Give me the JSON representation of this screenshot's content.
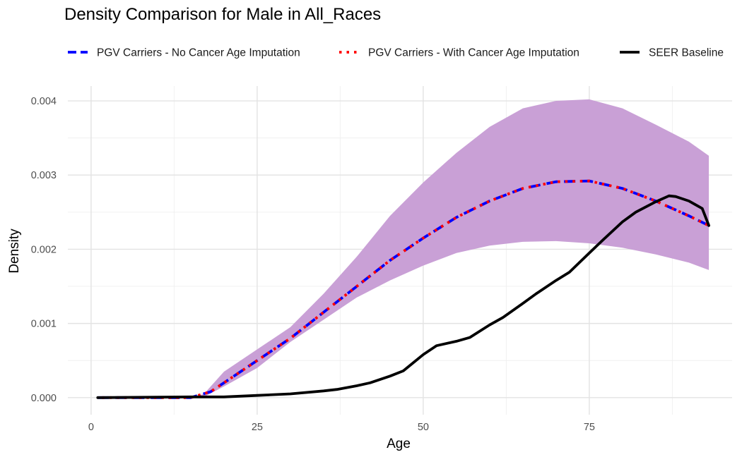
{
  "chart_data": {
    "type": "line",
    "title": "Density Comparison for Male in All_Races",
    "xlabel": "Age",
    "ylabel": "Density",
    "xlim": [
      -3.5,
      96.5
    ],
    "ylim": [
      -0.00023,
      0.0042
    ],
    "x_ticks": [
      0,
      25,
      50,
      75
    ],
    "x_tick_labels": [
      "0",
      "25",
      "50",
      "75"
    ],
    "y_ticks": [
      0,
      0.001,
      0.002,
      0.003,
      0.004
    ],
    "y_tick_labels": [
      "0.000",
      "0.001",
      "0.002",
      "0.003",
      "0.004"
    ],
    "grid": true,
    "legend_position": "top",
    "band": {
      "color": "#C9A0D6",
      "x": [
        1,
        15,
        17,
        20,
        25,
        30,
        35,
        40,
        45,
        50,
        55,
        60,
        65,
        70,
        75,
        80,
        85,
        90,
        93
      ],
      "lower": [
        0,
        0,
        1e-05,
        0.00015,
        0.0004,
        0.00075,
        0.00105,
        0.00135,
        0.00158,
        0.00178,
        0.00195,
        0.00205,
        0.0021,
        0.00211,
        0.00208,
        0.00202,
        0.00193,
        0.00182,
        0.00172
      ],
      "upper": [
        0,
        0,
        5e-05,
        0.00035,
        0.00065,
        0.00095,
        0.0014,
        0.0019,
        0.00245,
        0.0029,
        0.0033,
        0.00365,
        0.0039,
        0.004,
        0.00402,
        0.0039,
        0.00368,
        0.00345,
        0.00326
      ]
    },
    "series": [
      {
        "name": "PGV Carriers - No Cancer Age Imputation",
        "color": "#0000FF",
        "style": "dashed",
        "x": [
          1,
          15,
          18,
          20,
          25,
          30,
          35,
          40,
          45,
          50,
          55,
          60,
          65,
          70,
          75,
          80,
          85,
          90,
          93
        ],
        "y": [
          0,
          0,
          8e-05,
          0.0002,
          0.0005,
          0.0008,
          0.00115,
          0.0015,
          0.00185,
          0.00215,
          0.00243,
          0.00265,
          0.00282,
          0.00291,
          0.00292,
          0.00282,
          0.00265,
          0.00245,
          0.00232
        ]
      },
      {
        "name": "PGV Carriers - With Cancer Age Imputation",
        "color": "#FF0000",
        "style": "dotted",
        "x": [
          1,
          15,
          18,
          20,
          25,
          30,
          35,
          40,
          45,
          50,
          55,
          60,
          65,
          70,
          75,
          80,
          85,
          90,
          93
        ],
        "y": [
          0,
          0,
          8e-05,
          0.0002,
          0.0005,
          0.0008,
          0.00115,
          0.0015,
          0.00185,
          0.00215,
          0.00243,
          0.00265,
          0.00282,
          0.00291,
          0.00292,
          0.00282,
          0.00265,
          0.00245,
          0.00232
        ]
      },
      {
        "name": "SEER Baseline",
        "color": "#000000",
        "style": "solid",
        "x": [
          1,
          15,
          20,
          25,
          30,
          35,
          37,
          40,
          42,
          45,
          47,
          50,
          52,
          55,
          57,
          60,
          62,
          65,
          67,
          70,
          72,
          75,
          77,
          80,
          82,
          85,
          87,
          88,
          90,
          91,
          92,
          93
        ],
        "y": [
          0,
          1e-05,
          1e-05,
          3e-05,
          5e-05,
          9e-05,
          0.00011,
          0.00016,
          0.0002,
          0.00029,
          0.00036,
          0.00058,
          0.0007,
          0.00076,
          0.00081,
          0.00098,
          0.00108,
          0.00127,
          0.0014,
          0.00158,
          0.00169,
          0.00195,
          0.00212,
          0.00237,
          0.0025,
          0.00264,
          0.00272,
          0.00271,
          0.00265,
          0.0026,
          0.00255,
          0.00232
        ]
      }
    ]
  }
}
